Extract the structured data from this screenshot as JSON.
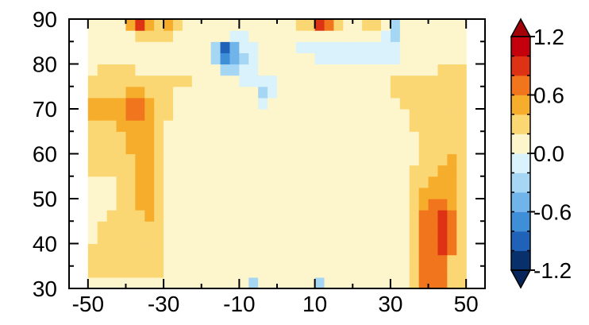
{
  "chart_data": {
    "type": "heatmap",
    "title": "",
    "xlabel": "",
    "ylabel": "",
    "xlim": [
      -55,
      55
    ],
    "ylim": [
      30,
      90
    ],
    "x_ticks": [
      -50,
      -30,
      -10,
      10,
      30,
      50
    ],
    "y_ticks": [
      30,
      40,
      50,
      60,
      70,
      80,
      90
    ],
    "x_tick_labels": [
      "-50",
      "-30",
      "-10",
      "10",
      "30",
      "50"
    ],
    "y_tick_labels": [
      "30",
      "40",
      "50",
      "60",
      "70",
      "80",
      "90"
    ],
    "colorbar": {
      "placement": "right",
      "extend": "both",
      "tick_values": [
        -1.2,
        -0.6,
        0.0,
        0.6,
        1.2
      ],
      "tick_labels": [
        "-1.2",
        "-0.6",
        "0.0",
        "0.6",
        "1.2"
      ],
      "levels": [
        -1.2,
        -1.0,
        -0.8,
        -0.6,
        -0.4,
        -0.2,
        0.0,
        0.2,
        0.4,
        0.6,
        0.8,
        1.0,
        1.2
      ],
      "colors": [
        "#08306b",
        "#1f62b8",
        "#3f8fd8",
        "#70b4ea",
        "#a5d6f4",
        "#d9f2fb",
        "#fdf6cc",
        "#fbd774",
        "#f6ad2c",
        "#f0751d",
        "#dd3214",
        "#c4000d"
      ],
      "under_color": "#07255a",
      "over_color": "#a30008"
    },
    "x": [
      -48.75,
      -46.25,
      -43.75,
      -41.25,
      -38.75,
      -36.25,
      -33.75,
      -31.25,
      -28.75,
      -26.25,
      -23.75,
      -21.25,
      -18.75,
      -16.25,
      -13.75,
      -11.25,
      -8.75,
      -6.25,
      -3.75,
      -1.25,
      1.25,
      3.75,
      6.25,
      8.75,
      11.25,
      13.75,
      16.25,
      18.75,
      21.25,
      23.75,
      26.25,
      28.75,
      31.25,
      33.75,
      36.25,
      38.75,
      41.25,
      43.75,
      46.25,
      48.75
    ],
    "y": [
      31.25,
      33.75,
      36.25,
      38.75,
      41.25,
      43.75,
      46.25,
      48.75,
      51.25,
      53.75,
      56.25,
      58.75,
      61.25,
      63.75,
      66.25,
      68.75,
      71.25,
      73.75,
      76.25,
      78.75,
      81.25,
      83.75,
      86.25,
      88.75
    ],
    "z": [
      [
        0.1,
        0.1,
        0.1,
        0.1,
        0.1,
        0.1,
        0.1,
        0.1,
        0.1,
        0.1,
        0.1,
        0.1,
        0.1,
        0.1,
        0.1,
        0.1,
        0.1,
        -0.3,
        0.1,
        0.1,
        0.1,
        0.1,
        0.1,
        0.1,
        -0.3,
        0.1,
        0.1,
        0.1,
        0.1,
        0.1,
        0.1,
        0.1,
        0.1,
        0.1,
        0.3,
        0.7,
        0.7,
        0.7,
        0.3,
        0.3
      ],
      [
        0.3,
        0.3,
        0.3,
        0.3,
        0.3,
        0.3,
        0.3,
        0.3,
        0.1,
        0.1,
        0.1,
        0.1,
        0.1,
        0.1,
        0.1,
        0.1,
        0.1,
        0.1,
        0.1,
        0.1,
        0.1,
        0.1,
        0.1,
        0.1,
        0.1,
        0.1,
        0.1,
        0.1,
        0.1,
        0.1,
        0.1,
        0.1,
        0.1,
        0.1,
        0.3,
        0.7,
        0.7,
        0.7,
        0.3,
        0.3
      ],
      [
        0.3,
        0.3,
        0.3,
        0.3,
        0.3,
        0.3,
        0.3,
        0.3,
        0.1,
        0.1,
        0.1,
        0.1,
        0.1,
        0.1,
        0.1,
        0.1,
        0.1,
        0.1,
        0.1,
        0.1,
        0.1,
        0.1,
        0.1,
        0.1,
        0.1,
        0.1,
        0.1,
        0.1,
        0.1,
        0.1,
        0.1,
        0.1,
        0.1,
        0.1,
        0.3,
        0.7,
        0.7,
        0.7,
        0.3,
        0.3
      ],
      [
        0.3,
        0.3,
        0.3,
        0.3,
        0.3,
        0.3,
        0.3,
        0.3,
        0.1,
        0.1,
        0.1,
        0.1,
        0.1,
        0.1,
        0.1,
        0.1,
        0.1,
        0.1,
        0.1,
        0.1,
        0.1,
        0.1,
        0.1,
        0.1,
        0.1,
        0.1,
        0.1,
        0.1,
        0.1,
        0.1,
        0.1,
        0.1,
        0.1,
        0.1,
        0.3,
        0.7,
        0.7,
        0.9,
        0.7,
        0.3
      ],
      [
        0.1,
        0.3,
        0.3,
        0.3,
        0.3,
        0.3,
        0.3,
        0.3,
        0.1,
        0.1,
        0.1,
        0.1,
        0.1,
        0.1,
        0.1,
        0.1,
        0.1,
        0.1,
        0.1,
        0.1,
        0.1,
        0.1,
        0.1,
        0.1,
        0.1,
        0.1,
        0.1,
        0.1,
        0.1,
        0.1,
        0.1,
        0.1,
        0.1,
        0.1,
        0.3,
        0.7,
        0.7,
        0.9,
        0.7,
        0.3
      ],
      [
        0.1,
        0.3,
        0.3,
        0.3,
        0.3,
        0.3,
        0.3,
        0.3,
        0.1,
        0.1,
        0.1,
        0.1,
        0.1,
        0.1,
        0.1,
        0.1,
        0.1,
        0.1,
        0.1,
        0.1,
        0.1,
        0.1,
        0.1,
        0.1,
        0.1,
        0.1,
        0.1,
        0.1,
        0.1,
        0.1,
        0.1,
        0.1,
        0.1,
        0.1,
        0.3,
        0.7,
        0.7,
        0.9,
        0.7,
        0.3
      ],
      [
        0.1,
        0.1,
        0.3,
        0.3,
        0.3,
        0.3,
        0.5,
        0.3,
        0.1,
        0.1,
        0.1,
        0.1,
        0.1,
        0.1,
        0.1,
        0.1,
        0.1,
        0.1,
        0.1,
        0.1,
        0.1,
        0.1,
        0.1,
        0.1,
        0.1,
        0.1,
        0.1,
        0.1,
        0.1,
        0.1,
        0.1,
        0.1,
        0.1,
        0.1,
        0.3,
        0.7,
        0.7,
        0.9,
        0.7,
        0.3
      ],
      [
        0.1,
        0.1,
        0.1,
        0.3,
        0.3,
        0.5,
        0.5,
        0.3,
        0.1,
        0.1,
        0.1,
        0.1,
        0.1,
        0.1,
        0.1,
        0.1,
        0.1,
        0.1,
        0.1,
        0.1,
        0.1,
        0.1,
        0.1,
        0.1,
        0.1,
        0.1,
        0.1,
        0.1,
        0.1,
        0.1,
        0.1,
        0.1,
        0.1,
        0.1,
        0.3,
        0.5,
        0.7,
        0.7,
        0.5,
        0.3
      ],
      [
        0.1,
        0.1,
        0.1,
        0.3,
        0.3,
        0.5,
        0.5,
        0.3,
        0.1,
        0.1,
        0.1,
        0.1,
        0.1,
        0.1,
        0.1,
        0.1,
        0.1,
        0.1,
        0.1,
        0.1,
        0.1,
        0.1,
        0.1,
        0.1,
        0.1,
        0.1,
        0.1,
        0.1,
        0.1,
        0.1,
        0.1,
        0.1,
        0.1,
        0.1,
        0.3,
        0.5,
        0.5,
        0.5,
        0.5,
        0.3
      ],
      [
        0.1,
        0.1,
        0.1,
        0.3,
        0.3,
        0.5,
        0.5,
        0.3,
        0.1,
        0.1,
        0.1,
        0.1,
        0.1,
        0.1,
        0.1,
        0.1,
        0.1,
        0.1,
        0.1,
        0.1,
        0.1,
        0.1,
        0.1,
        0.1,
        0.1,
        0.1,
        0.1,
        0.1,
        0.1,
        0.1,
        0.1,
        0.1,
        0.1,
        0.1,
        0.3,
        0.3,
        0.5,
        0.5,
        0.5,
        0.3
      ],
      [
        0.3,
        0.3,
        0.3,
        0.3,
        0.3,
        0.5,
        0.5,
        0.3,
        0.1,
        0.1,
        0.1,
        0.1,
        0.1,
        0.1,
        0.1,
        0.1,
        0.1,
        0.1,
        0.1,
        0.1,
        0.1,
        0.1,
        0.1,
        0.1,
        0.1,
        0.1,
        0.1,
        0.1,
        0.1,
        0.1,
        0.1,
        0.1,
        0.1,
        0.1,
        0.3,
        0.3,
        0.3,
        0.5,
        0.5,
        0.3
      ],
      [
        0.3,
        0.3,
        0.3,
        0.3,
        0.3,
        0.5,
        0.5,
        0.3,
        0.1,
        0.1,
        0.1,
        0.1,
        0.1,
        0.1,
        0.1,
        0.1,
        0.1,
        0.1,
        0.1,
        0.1,
        0.1,
        0.1,
        0.1,
        0.1,
        0.1,
        0.1,
        0.1,
        0.1,
        0.1,
        0.1,
        0.1,
        0.1,
        0.1,
        0.1,
        0.1,
        0.3,
        0.3,
        0.3,
        0.5,
        0.3
      ],
      [
        0.3,
        0.3,
        0.3,
        0.3,
        0.5,
        0.5,
        0.5,
        0.3,
        0.1,
        0.1,
        0.1,
        0.1,
        0.1,
        0.1,
        0.1,
        0.1,
        0.1,
        0.1,
        0.1,
        0.1,
        0.1,
        0.1,
        0.1,
        0.1,
        0.1,
        0.1,
        0.1,
        0.1,
        0.1,
        0.1,
        0.1,
        0.1,
        0.1,
        0.1,
        0.1,
        0.3,
        0.3,
        0.3,
        0.3,
        0.3
      ],
      [
        0.3,
        0.3,
        0.3,
        0.3,
        0.5,
        0.5,
        0.5,
        0.3,
        0.1,
        0.1,
        0.1,
        0.1,
        0.1,
        0.1,
        0.1,
        0.1,
        0.1,
        0.1,
        0.1,
        0.1,
        0.1,
        0.1,
        0.1,
        0.1,
        0.1,
        0.1,
        0.1,
        0.1,
        0.1,
        0.1,
        0.1,
        0.1,
        0.1,
        0.1,
        0.1,
        0.3,
        0.3,
        0.3,
        0.3,
        0.3
      ],
      [
        0.3,
        0.3,
        0.3,
        0.5,
        0.5,
        0.5,
        0.5,
        0.3,
        0.1,
        0.1,
        0.1,
        0.1,
        0.1,
        0.1,
        0.1,
        0.1,
        0.1,
        0.1,
        0.1,
        0.1,
        0.1,
        0.1,
        0.1,
        0.1,
        0.1,
        0.1,
        0.1,
        0.1,
        0.1,
        0.1,
        0.1,
        0.1,
        0.1,
        0.1,
        0.3,
        0.3,
        0.3,
        0.3,
        0.3,
        0.3
      ],
      [
        0.5,
        0.5,
        0.5,
        0.5,
        0.7,
        0.7,
        0.5,
        0.3,
        0.3,
        0.1,
        0.1,
        0.1,
        0.1,
        0.1,
        0.1,
        0.1,
        0.1,
        0.1,
        0.1,
        0.1,
        0.1,
        0.1,
        0.1,
        0.1,
        0.1,
        0.1,
        0.1,
        0.1,
        0.1,
        0.1,
        0.1,
        0.1,
        0.1,
        0.1,
        0.3,
        0.3,
        0.3,
        0.3,
        0.3,
        0.3
      ],
      [
        0.5,
        0.5,
        0.5,
        0.5,
        0.7,
        0.7,
        0.5,
        0.3,
        0.3,
        0.1,
        0.1,
        0.1,
        0.1,
        0.1,
        0.1,
        0.1,
        0.1,
        0.1,
        -0.1,
        0.1,
        0.1,
        0.1,
        0.1,
        0.1,
        0.1,
        0.1,
        0.1,
        0.1,
        0.1,
        0.1,
        0.1,
        0.1,
        0.1,
        0.3,
        0.3,
        0.3,
        0.3,
        0.3,
        0.3,
        0.3
      ],
      [
        0.3,
        0.3,
        0.3,
        0.3,
        0.5,
        0.5,
        0.3,
        0.3,
        0.3,
        0.1,
        0.1,
        0.1,
        0.1,
        0.1,
        0.1,
        0.1,
        0.1,
        0.1,
        -0.3,
        -0.1,
        0.1,
        0.1,
        0.1,
        0.1,
        0.1,
        0.1,
        0.1,
        0.1,
        0.1,
        0.1,
        0.1,
        0.1,
        0.3,
        0.3,
        0.3,
        0.3,
        0.3,
        0.3,
        0.3,
        0.3
      ],
      [
        0.3,
        0.3,
        0.3,
        0.3,
        0.3,
        0.3,
        0.3,
        0.3,
        0.3,
        0.3,
        0.3,
        0.1,
        0.1,
        0.1,
        0.1,
        0.1,
        -0.1,
        -0.1,
        -0.1,
        -0.1,
        0.1,
        0.1,
        0.1,
        0.1,
        0.1,
        0.1,
        0.1,
        0.1,
        0.1,
        0.1,
        0.1,
        0.1,
        0.3,
        0.3,
        0.3,
        0.3,
        0.3,
        0.3,
        0.3,
        0.3
      ],
      [
        0.1,
        0.3,
        0.3,
        0.3,
        0.3,
        0.1,
        0.1,
        0.1,
        0.1,
        0.1,
        0.1,
        0.1,
        0.1,
        0.1,
        -0.3,
        -0.3,
        -0.1,
        -0.1,
        0.1,
        0.1,
        0.1,
        0.1,
        0.1,
        0.1,
        0.1,
        0.1,
        0.1,
        0.1,
        0.1,
        0.1,
        0.1,
        0.1,
        0.1,
        0.1,
        0.1,
        0.1,
        0.1,
        0.3,
        0.3,
        0.3
      ],
      [
        0.1,
        0.1,
        0.1,
        0.1,
        0.1,
        0.1,
        0.1,
        0.1,
        0.1,
        0.1,
        0.1,
        0.1,
        0.1,
        -0.3,
        -0.7,
        -0.5,
        -0.3,
        -0.1,
        0.1,
        0.1,
        0.1,
        0.1,
        0.1,
        0.1,
        -0.1,
        -0.1,
        -0.1,
        -0.1,
        -0.1,
        -0.1,
        -0.1,
        -0.1,
        -0.1,
        0.1,
        0.1,
        0.1,
        0.1,
        0.1,
        0.1,
        0.1
      ],
      [
        0.1,
        0.1,
        0.1,
        0.1,
        0.1,
        0.1,
        0.1,
        0.1,
        0.1,
        0.1,
        0.1,
        0.1,
        0.1,
        -0.3,
        -0.9,
        -0.5,
        -0.1,
        -0.1,
        0.1,
        0.1,
        0.1,
        0.1,
        -0.1,
        -0.1,
        -0.1,
        -0.1,
        -0.1,
        -0.1,
        -0.1,
        -0.1,
        -0.1,
        -0.1,
        -0.1,
        0.1,
        0.1,
        0.1,
        0.1,
        0.1,
        0.1,
        0.1
      ],
      [
        0.1,
        0.1,
        0.1,
        0.1,
        0.1,
        0.3,
        0.3,
        0.3,
        0.3,
        0.1,
        0.1,
        0.1,
        0.1,
        0.1,
        0.1,
        -0.1,
        -0.1,
        0.1,
        0.1,
        0.1,
        0.1,
        0.1,
        0.1,
        0.1,
        0.1,
        0.1,
        0.1,
        0.1,
        0.1,
        0.1,
        0.1,
        -0.1,
        -0.3,
        0.1,
        0.1,
        0.1,
        0.1,
        0.1,
        0.1,
        0.1
      ],
      [
        0.1,
        0.1,
        0.1,
        0.1,
        0.5,
        0.9,
        0.5,
        0.3,
        0.5,
        0.3,
        0.1,
        0.1,
        0.1,
        0.1,
        0.1,
        0.1,
        0.1,
        0.1,
        0.1,
        0.1,
        0.1,
        0.1,
        0.3,
        0.3,
        0.9,
        0.7,
        0.3,
        0.1,
        0.1,
        0.3,
        0.3,
        0.1,
        -0.3,
        0.1,
        0.1,
        0.1,
        0.1,
        0.1,
        0.1,
        0.1
      ]
    ]
  }
}
